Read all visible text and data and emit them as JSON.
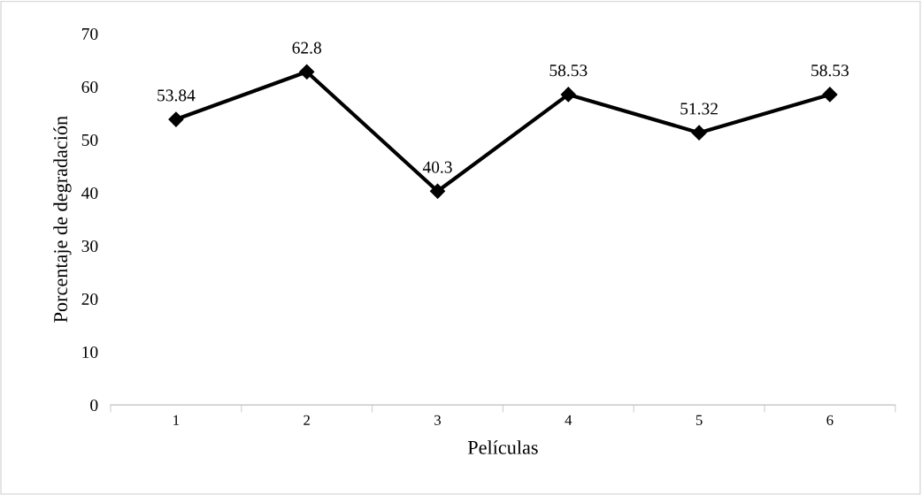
{
  "chart_data": {
    "type": "line",
    "xlabel": "Películas",
    "ylabel": "Porcentaje de degradación",
    "categories": [
      "1",
      "2",
      "3",
      "4",
      "5",
      "6"
    ],
    "values": [
      53.84,
      62.8,
      40.3,
      58.53,
      51.32,
      58.53
    ],
    "color": "#000000",
    "marker": "diamond",
    "line_style": "solid",
    "ylim": [
      0,
      70
    ],
    "yticks": [
      0,
      10,
      20,
      30,
      40,
      50,
      60,
      70
    ],
    "data_labels": true,
    "grid": false,
    "legend": false
  }
}
